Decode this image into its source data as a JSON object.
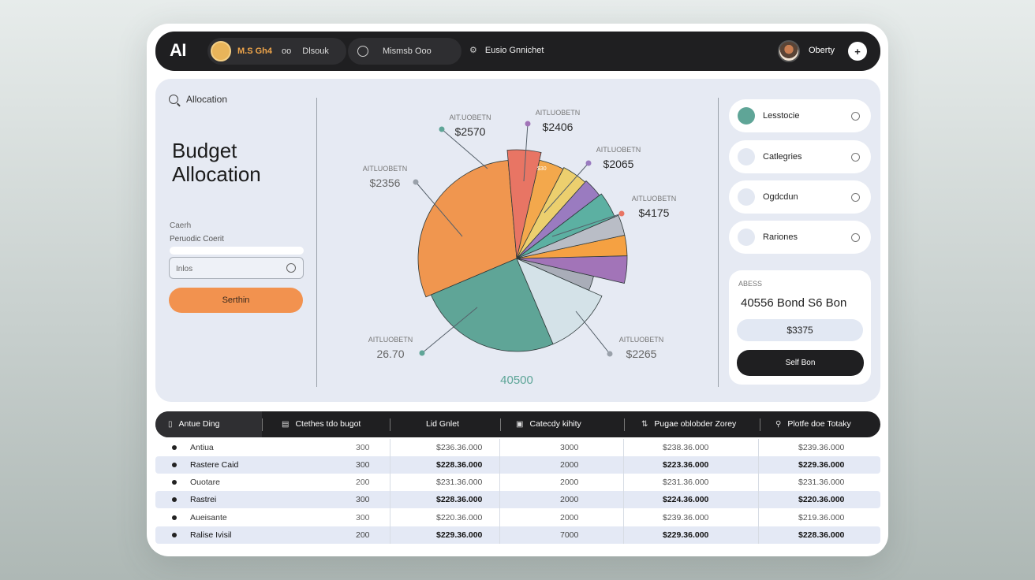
{
  "topbar": {
    "logo": "AI",
    "pill1_text1": "M.S Gh4",
    "pill1_rings": "oo",
    "pill1_text2": "Dlsouk",
    "pill2_text": "Mismsb Ooo",
    "nav_label": "Eusio Gnnichet",
    "username": "Oberty",
    "plus_label": "+"
  },
  "left": {
    "search_label": "Allocation",
    "title_line1": "Budget",
    "title_line2": "Allocation",
    "label1": "Caerh",
    "label2": "Peruodic Coerit",
    "input_value": "Inlos",
    "button_label": "Serthin"
  },
  "chart_data": {
    "type": "pie",
    "slices": [
      {
        "value": 30,
        "color": "#f0964f"
      },
      {
        "value": 25,
        "color": "#5fa597"
      },
      {
        "value": 12,
        "color": "#d4e2e8"
      },
      {
        "value": 3,
        "color": "#a9adb8"
      },
      {
        "value": 4,
        "color": "#a274b8"
      },
      {
        "value": 3,
        "color": "#f5a142"
      },
      {
        "value": 3,
        "color": "#b9bdc6"
      },
      {
        "value": 4,
        "color": "#5cb0a2"
      },
      {
        "value": 3,
        "color": "#9a7bc0"
      },
      {
        "value": 4,
        "color": "#eccf6e"
      },
      {
        "value": 4,
        "color": "#f3a84c"
      },
      {
        "value": 5,
        "color": "#e87564"
      }
    ],
    "inner_label": "$30",
    "center_value": "40500",
    "annotations": [
      {
        "caption": "AIT.UOBETN",
        "value": "$2570"
      },
      {
        "caption": "AITLUOBETN",
        "value": "$2406"
      },
      {
        "caption": "AITLUOBETN",
        "value": "$2356"
      },
      {
        "caption": "AITLUOBETN",
        "value": "$2065"
      },
      {
        "caption": "AITLUOBETN",
        "value": "$4175"
      },
      {
        "caption": "AITLUOBETN",
        "value": "26.70"
      },
      {
        "caption": "AITLUOBETN",
        "value": "$2265"
      }
    ]
  },
  "right": {
    "options": [
      {
        "label": "Lesstocie",
        "dot_color": "#5fa597"
      },
      {
        "label": "Catlegries",
        "dot_color": "#e3e8f2"
      },
      {
        "label": "Ogdcdun",
        "dot_color": "#e3e8f2"
      },
      {
        "label": "Rariones",
        "dot_color": "#e3e8f2"
      }
    ],
    "summary_caption": "ABESS",
    "summary_big": "40556 Bond S6 Bon",
    "summary_value": "$3375",
    "summary_button": "Self Bon"
  },
  "table": {
    "headers": [
      "Antue Ding",
      "Ctethes tdo bugot",
      "Lid Gnlet",
      "Catecdy kihity",
      "Pugae oblobder Zorey",
      "Plotfe doe Totaky"
    ],
    "rows": [
      {
        "name": "Antiua",
        "num": "300",
        "v1": "$236.36.000",
        "v2": "3000",
        "v3": "$238.36.000",
        "v4": "$239.36.000"
      },
      {
        "name": "Rastere Caid",
        "num": "300",
        "v1": "$228.36.000",
        "v2": "2000",
        "v3": "$223.36.000",
        "v4": "$229.36.000"
      },
      {
        "name": "Ouotare",
        "num": "200",
        "v1": "$231.36.000",
        "v2": "2000",
        "v3": "$231.36.000",
        "v4": "$231.36.000"
      },
      {
        "name": "Rastrei",
        "num": "300",
        "v1": "$228.36.000",
        "v2": "2000",
        "v3": "$224.36.000",
        "v4": "$220.36.000"
      },
      {
        "name": "Aueisante",
        "num": "300",
        "v1": "$220.36.000",
        "v2": "2000",
        "v3": "$239.36.000",
        "v4": "$219.36.000"
      },
      {
        "name": "Ralise Ivisil",
        "num": "200",
        "v1": "$229.36.000",
        "v2": "7000",
        "v3": "$229.36.000",
        "v4": "$228.36.000"
      }
    ]
  }
}
